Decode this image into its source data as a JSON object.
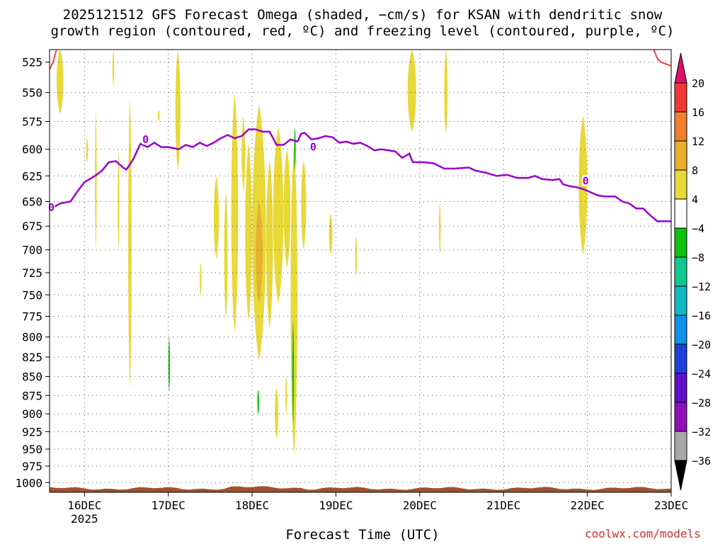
{
  "title_line1": "2025121512 GFS Forecast Omega (shaded, −cm/s) for KSAN with dendritic snow",
  "title_line2": "growth region (contoured, red, ºC) and freezing level (contoured, purple, ºC)",
  "xlabel": "Forecast Time (UTC)",
  "credit": "coolwx.com/models",
  "chart_data": {
    "type": "heatmap",
    "title": "2025121512 GFS Forecast Omega (shaded, −cm/s) for KSAN with dendritic snow growth region (contoured, red, ºC) and freezing level (contoured, purple, ºC)",
    "xlabel": "Forecast Time (UTC)",
    "ylabel": "",
    "x_range_hours_from_16DEC00": [
      -10,
      168
    ],
    "y_range_hPa": [
      1015,
      515
    ],
    "y_scale": "log",
    "x_ticks": [
      {
        "label": "16DEC",
        "sub": "2025",
        "h": 0
      },
      {
        "label": "17DEC",
        "sub": "",
        "h": 24
      },
      {
        "label": "18DEC",
        "sub": "",
        "h": 48
      },
      {
        "label": "19DEC",
        "sub": "",
        "h": 72
      },
      {
        "label": "20DEC",
        "sub": "",
        "h": 96
      },
      {
        "label": "21DEC",
        "sub": "",
        "h": 120
      },
      {
        "label": "22DEC",
        "sub": "",
        "h": 144
      },
      {
        "label": "23DEC",
        "sub": "",
        "h": 168
      }
    ],
    "y_ticks": [
      525,
      550,
      575,
      600,
      625,
      650,
      675,
      700,
      725,
      750,
      775,
      800,
      825,
      850,
      875,
      900,
      925,
      950,
      975,
      1000
    ],
    "colorbar": {
      "labels": [
        "20",
        "16",
        "12",
        "8",
        "4",
        "−4",
        "−8",
        "−12",
        "−16",
        "−20",
        "−24",
        "−28",
        "−32",
        "−36"
      ],
      "colors": [
        "#f03838",
        "#f08030",
        "#e8b030",
        "#e8d838",
        "#ffffff",
        "#10c010",
        "#10c890",
        "#10b8c8",
        "#1090e8",
        "#2040d8",
        "#6010c8",
        "#9010b8",
        "#a8a8a8"
      ],
      "top_arrow": "#e0106c",
      "bottom_arrow": "#000000"
    },
    "freezing_level": {
      "color": "#9900cc",
      "label": "0",
      "label_points": [
        [
          -9.5,
          656
        ],
        [
          17.5,
          591
        ],
        [
          65.5,
          598
        ],
        [
          143.5,
          630
        ]
      ],
      "points": [
        [
          -10,
          658
        ],
        [
          -7,
          652
        ],
        [
          -4,
          650
        ],
        [
          -2,
          640
        ],
        [
          0,
          631
        ],
        [
          3,
          625
        ],
        [
          5,
          620
        ],
        [
          7,
          612
        ],
        [
          9,
          611
        ],
        [
          11,
          617
        ],
        [
          12,
          619
        ],
        [
          14,
          609
        ],
        [
          16,
          595
        ],
        [
          18,
          598
        ],
        [
          20,
          594
        ],
        [
          22,
          598
        ],
        [
          24,
          598
        ],
        [
          27,
          600
        ],
        [
          29,
          596
        ],
        [
          31,
          598
        ],
        [
          33,
          594
        ],
        [
          35,
          597
        ],
        [
          37,
          594
        ],
        [
          39,
          590
        ],
        [
          41,
          587
        ],
        [
          43,
          590
        ],
        [
          45,
          588
        ],
        [
          47,
          582
        ],
        [
          49,
          582
        ],
        [
          51,
          584
        ],
        [
          53,
          584
        ],
        [
          55,
          596
        ],
        [
          57,
          596
        ],
        [
          59,
          591
        ],
        [
          61,
          593
        ],
        [
          62,
          586
        ],
        [
          63,
          585
        ],
        [
          65,
          591
        ],
        [
          67,
          590
        ],
        [
          69,
          588
        ],
        [
          71,
          589
        ],
        [
          73,
          594
        ],
        [
          75,
          593
        ],
        [
          77,
          595
        ],
        [
          79,
          594
        ],
        [
          81,
          597
        ],
        [
          83,
          601
        ],
        [
          85,
          600
        ],
        [
          87,
          601
        ],
        [
          89,
          602
        ],
        [
          91,
          608
        ],
        [
          93,
          604
        ],
        [
          94,
          612
        ],
        [
          97,
          612
        ],
        [
          100,
          613
        ],
        [
          103,
          618
        ],
        [
          106,
          618
        ],
        [
          110,
          617
        ],
        [
          112,
          620
        ],
        [
          115,
          622
        ],
        [
          118,
          625
        ],
        [
          121,
          624
        ],
        [
          124,
          627
        ],
        [
          127,
          627
        ],
        [
          129,
          625
        ],
        [
          131,
          628
        ],
        [
          134,
          629
        ],
        [
          136,
          628
        ],
        [
          137,
          633
        ],
        [
          139,
          635
        ],
        [
          141,
          636
        ],
        [
          143,
          638
        ],
        [
          145,
          641
        ],
        [
          147,
          644
        ],
        [
          149,
          645
        ],
        [
          152,
          645
        ],
        [
          154,
          650
        ],
        [
          156,
          652
        ],
        [
          158,
          657
        ],
        [
          160,
          657
        ],
        [
          162,
          664
        ],
        [
          164,
          670
        ],
        [
          166,
          670
        ],
        [
          168,
          670
        ]
      ]
    },
    "dendritic_snow_zone": {
      "color": "#ff4040",
      "segments": [
        [
          [
            -10,
            531
          ],
          [
            -9,
            525
          ],
          [
            -8,
            515
          ]
        ],
        [
          [
            163,
            515
          ],
          [
            164,
            522
          ],
          [
            165,
            525
          ],
          [
            167,
            527
          ],
          [
            168,
            528
          ]
        ]
      ]
    },
    "omega_shading": [
      {
        "value": 4,
        "color": "#e8d838",
        "x0": -8,
        "x1": -6,
        "ptop": 515,
        "pbot": 568
      },
      {
        "value": 4,
        "color": "#e8d838",
        "x0": -7.5,
        "x1": -7,
        "ptop": 515,
        "pbot": 544
      },
      {
        "value": 4,
        "color": "#e8d838",
        "x0": 0.5,
        "x1": 1,
        "ptop": 590,
        "pbot": 612
      },
      {
        "value": 4,
        "color": "#e8d838",
        "x0": 3,
        "x1": 3.5,
        "ptop": 565,
        "pbot": 700
      },
      {
        "value": 4,
        "color": "#e8d838",
        "x0": 8,
        "x1": 8.5,
        "ptop": 515,
        "pbot": 545
      },
      {
        "value": 4,
        "color": "#e8d838",
        "x0": 12.5,
        "x1": 13.5,
        "ptop": 555,
        "pbot": 865
      },
      {
        "value": 4,
        "color": "#e8d838",
        "x0": 21,
        "x1": 21.5,
        "ptop": 565,
        "pbot": 575
      },
      {
        "value": 4,
        "color": "#e8d838",
        "x0": 26,
        "x1": 27.5,
        "ptop": 515,
        "pbot": 620
      },
      {
        "value": 4,
        "color": "#e8d838",
        "x0": 37,
        "x1": 38.5,
        "ptop": 625,
        "pbot": 710
      },
      {
        "value": 4,
        "color": "#e8d838",
        "x0": 40,
        "x1": 41,
        "ptop": 640,
        "pbot": 780
      },
      {
        "value": 4,
        "color": "#e8d838",
        "x0": 42,
        "x1": 44,
        "ptop": 550,
        "pbot": 795
      },
      {
        "value": 4,
        "color": "#e8d838",
        "x0": 45,
        "x1": 46,
        "ptop": 570,
        "pbot": 640
      },
      {
        "value": 4,
        "color": "#e8d838",
        "x0": 46,
        "x1": 48,
        "ptop": 595,
        "pbot": 780
      },
      {
        "value": 4,
        "color": "#e8d838",
        "x0": 48,
        "x1": 52,
        "ptop": 560,
        "pbot": 830
      },
      {
        "value": 8,
        "color": "#e8b030",
        "x0": 49,
        "x1": 51,
        "ptop": 650,
        "pbot": 760
      },
      {
        "value": 4,
        "color": "#e8d838",
        "x0": 52,
        "x1": 54,
        "ptop": 610,
        "pbot": 790
      },
      {
        "value": 4,
        "color": "#e8d838",
        "x0": 54,
        "x1": 57,
        "ptop": 580,
        "pbot": 760
      },
      {
        "value": 4,
        "color": "#e8d838",
        "x0": 57,
        "x1": 59,
        "ptop": 600,
        "pbot": 720
      },
      {
        "value": 4,
        "color": "#e8d838",
        "x0": 59,
        "x1": 61,
        "ptop": 595,
        "pbot": 960
      },
      {
        "value": 4,
        "color": "#e8d838",
        "x0": 62,
        "x1": 63.5,
        "ptop": 610,
        "pbot": 700
      },
      {
        "value": 4,
        "color": "#e8d838",
        "x0": 70,
        "x1": 71,
        "ptop": 662,
        "pbot": 705
      },
      {
        "value": 4,
        "color": "#e8d838",
        "x0": 77.5,
        "x1": 78,
        "ptop": 685,
        "pbot": 730
      },
      {
        "value": 4,
        "color": "#e8d838",
        "x0": 54.5,
        "x1": 55.5,
        "ptop": 865,
        "pbot": 935
      },
      {
        "value": 4,
        "color": "#e8d838",
        "x0": 57.5,
        "x1": 58,
        "ptop": 850,
        "pbot": 900
      },
      {
        "value": 4,
        "color": "#e8d838",
        "x0": 9.5,
        "x1": 10,
        "ptop": 600,
        "pbot": 700
      },
      {
        "value": 4,
        "color": "#e8d838",
        "x0": 92.5,
        "x1": 95,
        "ptop": 515,
        "pbot": 584
      },
      {
        "value": 4,
        "color": "#e8d838",
        "x0": 103,
        "x1": 104,
        "ptop": 515,
        "pbot": 586
      },
      {
        "value": 4,
        "color": "#e8d838",
        "x0": 101.5,
        "x1": 102,
        "ptop": 650,
        "pbot": 705
      },
      {
        "value": 4,
        "color": "#e8d838",
        "x0": 141.5,
        "x1": 144,
        "ptop": 570,
        "pbot": 705
      },
      {
        "value": 4,
        "color": "#e8d838",
        "x0": 33,
        "x1": 33.5,
        "ptop": 715,
        "pbot": 750
      },
      {
        "value": -4,
        "color": "#10c010",
        "x0": 60,
        "x1": 60.5,
        "ptop": 580,
        "pbot": 620
      },
      {
        "value": -4,
        "color": "#10c010",
        "x0": 59.5,
        "x1": 60,
        "ptop": 780,
        "pbot": 915
      },
      {
        "value": -4,
        "color": "#10c010",
        "x0": 24,
        "x1": 24.5,
        "ptop": 800,
        "pbot": 870
      },
      {
        "value": -4,
        "color": "#10c010",
        "x0": 49.5,
        "x1": 50,
        "ptop": 868,
        "pbot": 900
      }
    ],
    "ground_color": "#a0522d",
    "grid": true
  }
}
